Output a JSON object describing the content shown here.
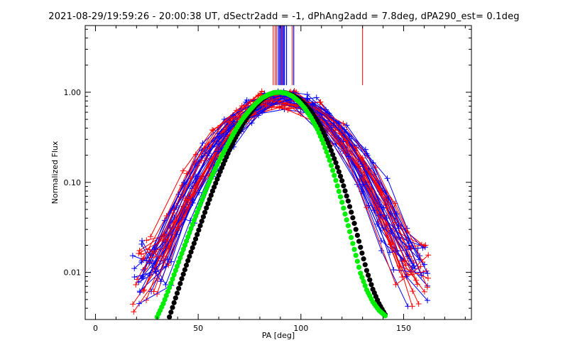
{
  "chart_data": {
    "type": "line",
    "title": "2021-08-29/19:59:26 - 20:00:38 UT, dSectr2add = -1, dPhAng2add = 7.8deg, dPA290_est=  0.1deg",
    "xlabel": "PA [deg]",
    "ylabel": "Normalized Flux",
    "xlim": [
      -5,
      183
    ],
    "ylim": [
      0.003,
      5.5
    ],
    "yscale": "log",
    "x_ticks": [
      0,
      50,
      100,
      150
    ],
    "x_tick_labels": [
      "0",
      "50",
      "100",
      "150"
    ],
    "y_ticks": [
      0.01,
      0.1,
      1.0
    ],
    "y_tick_labels": [
      "0.01",
      "0.10",
      "1.00"
    ],
    "grid": false,
    "colors": {
      "red_series": "#ff0000",
      "blue_series": "#0000ff",
      "green_fit": "#00ee00",
      "black_fit": "#000000",
      "axes": "#000000"
    },
    "markers": {
      "measured": "plus",
      "fits": "filled-circle"
    },
    "series": [
      {
        "color": "green",
        "x": [
          30,
          33,
          36,
          39,
          42,
          45,
          48,
          51,
          54,
          57,
          60,
          63,
          66,
          69,
          72,
          75,
          78,
          81,
          84,
          87,
          90,
          93,
          96,
          99,
          102,
          105,
          108,
          111,
          114,
          117,
          120,
          123,
          126,
          129,
          132,
          135,
          138,
          141
        ],
        "y": [
          0.0032,
          0.0045,
          0.0068,
          0.0105,
          0.0162,
          0.0248,
          0.038,
          0.057,
          0.085,
          0.122,
          0.17,
          0.23,
          0.31,
          0.41,
          0.52,
          0.63,
          0.75,
          0.86,
          0.94,
          0.99,
          1.0,
          0.97,
          0.9,
          0.79,
          0.66,
          0.52,
          0.39,
          0.27,
          0.175,
          0.105,
          0.06,
          0.033,
          0.018,
          0.0098,
          0.0064,
          0.0047,
          0.0038,
          0.0033
        ]
      },
      {
        "color": "black",
        "x": [
          36,
          39,
          42,
          45,
          48,
          51,
          54,
          57,
          60,
          63,
          66,
          69,
          72,
          75,
          78,
          81,
          84,
          87,
          90,
          93,
          96,
          99,
          102,
          105,
          108,
          111,
          114,
          117,
          120,
          123,
          126,
          129,
          132,
          135,
          138,
          141
        ],
        "y": [
          0.0032,
          0.0052,
          0.0085,
          0.0135,
          0.021,
          0.033,
          0.052,
          0.08,
          0.12,
          0.175,
          0.25,
          0.34,
          0.45,
          0.58,
          0.71,
          0.83,
          0.93,
          0.99,
          1.0,
          0.98,
          0.92,
          0.84,
          0.73,
          0.61,
          0.48,
          0.36,
          0.25,
          0.165,
          0.104,
          0.062,
          0.035,
          0.019,
          0.0105,
          0.0065,
          0.0045,
          0.0034
        ]
      }
    ],
    "annotations": "numerous red and blue measured PA distribution curves with plus markers; vertical red and blue lines near PA 86-97 and a single red line near PA 130 above 1.00"
  }
}
